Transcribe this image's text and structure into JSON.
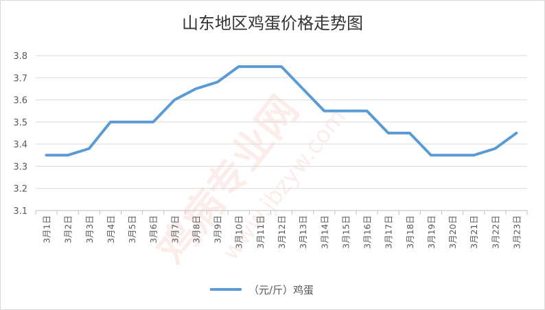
{
  "chart_data": {
    "type": "line",
    "title": "山东地区鸡蛋价格走势图",
    "categories": [
      "3月1日",
      "3月2日",
      "3月3日",
      "3月4日",
      "3月5日",
      "3月6日",
      "3月7日",
      "3月8日",
      "3月9日",
      "3月10日",
      "3月11日",
      "3月12日",
      "3月13日",
      "3月14日",
      "3月15日",
      "3月16日",
      "3月17日",
      "3月18日",
      "3月19日",
      "3月20日",
      "3月21日",
      "3月22日",
      "3月23日"
    ],
    "series": [
      {
        "name": "（元/斤）鸡蛋",
        "color": "#5b9bd5",
        "values": [
          3.35,
          3.35,
          3.38,
          3.5,
          3.5,
          3.5,
          3.6,
          3.65,
          3.68,
          3.75,
          3.75,
          3.75,
          3.65,
          3.55,
          3.55,
          3.55,
          3.45,
          3.45,
          3.35,
          3.35,
          3.35,
          3.38,
          3.45
        ]
      }
    ],
    "yticks": [
      "3.1",
      "3.2",
      "3.3",
      "3.4",
      "3.5",
      "3.6",
      "3.7",
      "3.8"
    ],
    "ylim": [
      3.1,
      3.8
    ],
    "xlabel": "",
    "ylabel": "",
    "grid": true,
    "legend": "bottom"
  },
  "watermark": {
    "text": "鸡病专业网",
    "url": "www.jbzyw.com",
    "color": "#e6402e"
  }
}
